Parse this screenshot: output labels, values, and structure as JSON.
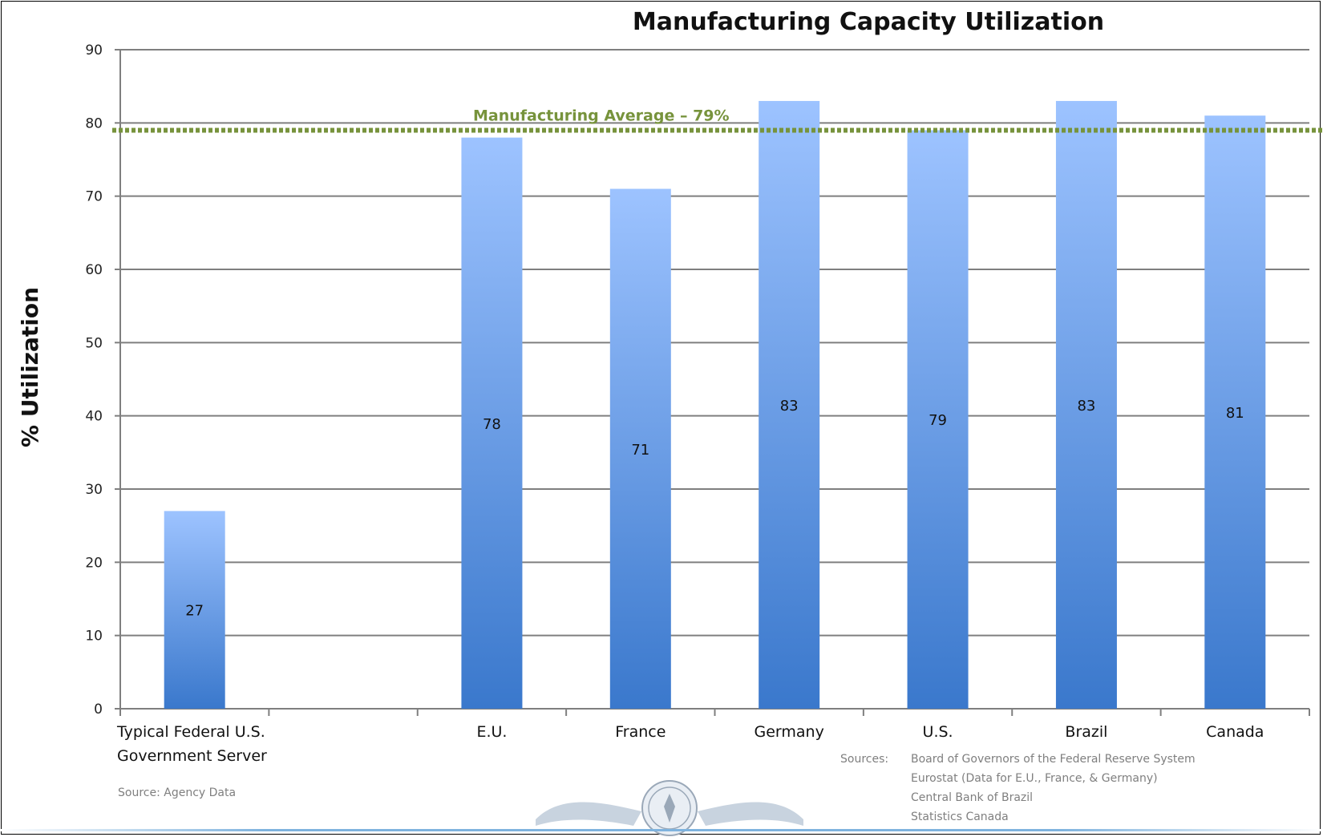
{
  "chart_data": {
    "type": "bar",
    "title": "Manufacturing Capacity Utilization",
    "xlabel": "",
    "ylabel": "% Utilization",
    "ylim": [
      0,
      90
    ],
    "yticks": [
      0,
      10,
      20,
      30,
      40,
      50,
      60,
      70,
      80,
      90
    ],
    "grid": true,
    "categories": [
      "Typical Federal U.S. Government Server",
      "",
      "E.U.",
      "France",
      "Germany",
      "U.S.",
      "Brazil",
      "Canada"
    ],
    "category_lines": [
      [
        "Typical Federal U.S.",
        "Government Server"
      ],
      [
        ""
      ],
      [
        "E.U."
      ],
      [
        "France"
      ],
      [
        "Germany"
      ],
      [
        "U.S."
      ],
      [
        "Brazil"
      ],
      [
        "Canada"
      ]
    ],
    "values": [
      27,
      null,
      78,
      71,
      83,
      79,
      83,
      81
    ],
    "reference_line": {
      "label": "Manufacturing Average – 79%",
      "value": 79,
      "color": "#77933c"
    },
    "bar_colors": {
      "top": "#9dc3ff",
      "bottom": "#3a78cc"
    }
  },
  "notes": {
    "server_source": "Source:  Agency Data",
    "sources_label": "Sources:",
    "sources": [
      "Board of Governors of the Federal Reserve System",
      "Eurostat  (Data for E.U., France, & Germany)",
      "Central Bank of Brazil",
      "Statistics Canada"
    ]
  },
  "seal": {
    "icon": "eagle-seal-icon"
  }
}
